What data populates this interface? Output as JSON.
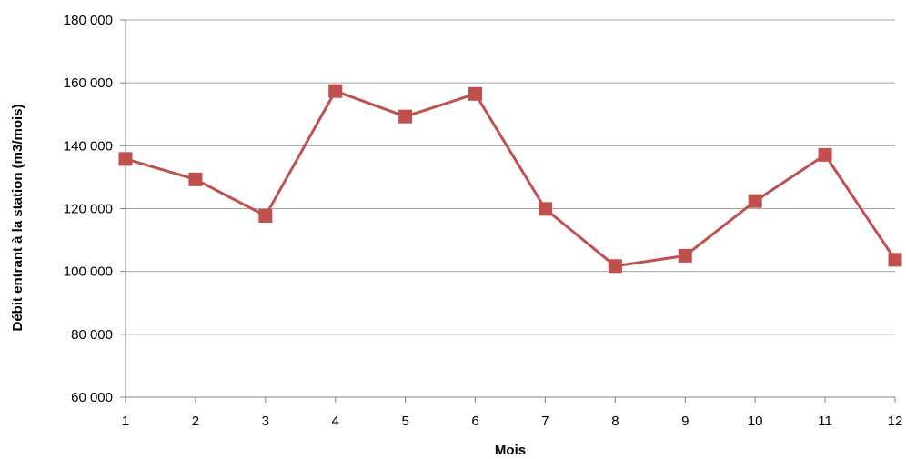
{
  "chart_data": {
    "type": "line",
    "title": "",
    "xlabel": "Mois",
    "ylabel": "Débit entrant à la station (m3/mois)",
    "categories": [
      "1",
      "2",
      "3",
      "4",
      "5",
      "6",
      "7",
      "8",
      "9",
      "10",
      "11",
      "12"
    ],
    "series": [
      {
        "values": [
          135800,
          129300,
          117700,
          157400,
          149300,
          156500,
          119900,
          101700,
          105000,
          122400,
          137100,
          103700
        ]
      }
    ],
    "ylim": [
      60000,
      180000
    ],
    "yticks": [
      60000,
      80000,
      100000,
      120000,
      140000,
      160000,
      180000
    ],
    "ytick_labels": [
      "60 000",
      "80 000",
      "100 000",
      "120 000",
      "140 000",
      "160 000",
      "180 000"
    ],
    "grid": true,
    "legend": "none",
    "colors": {
      "series": "#C0504D",
      "grid": "#A6A6A6",
      "axis": "#808080"
    }
  }
}
